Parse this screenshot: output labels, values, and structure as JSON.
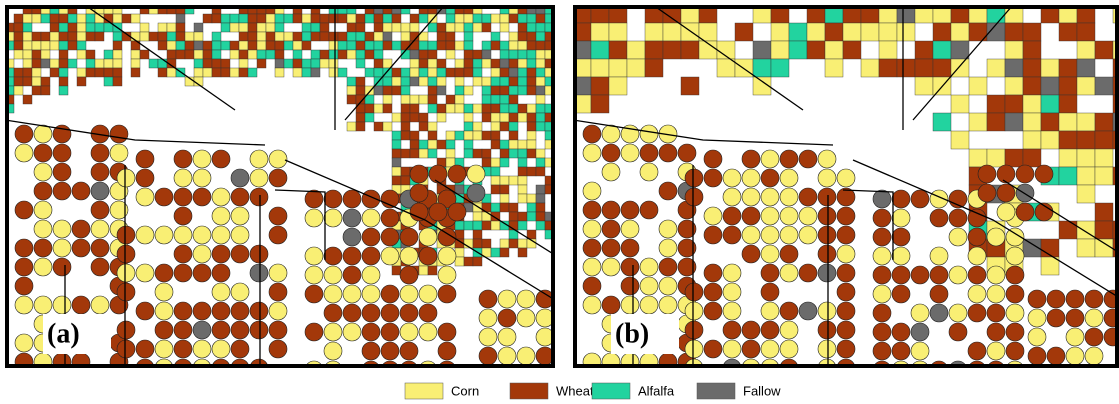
{
  "panels": [
    {
      "label": "(a)"
    },
    {
      "label": "(b)"
    }
  ],
  "legend": [
    {
      "label": "Corn",
      "color": "#f9ef74"
    },
    {
      "label": "Wheat",
      "color": "#a3380a"
    },
    {
      "label": "Alfalfa",
      "color": "#22d39f"
    },
    {
      "label": "Fallow",
      "color": "#6b6b6b"
    }
  ]
}
